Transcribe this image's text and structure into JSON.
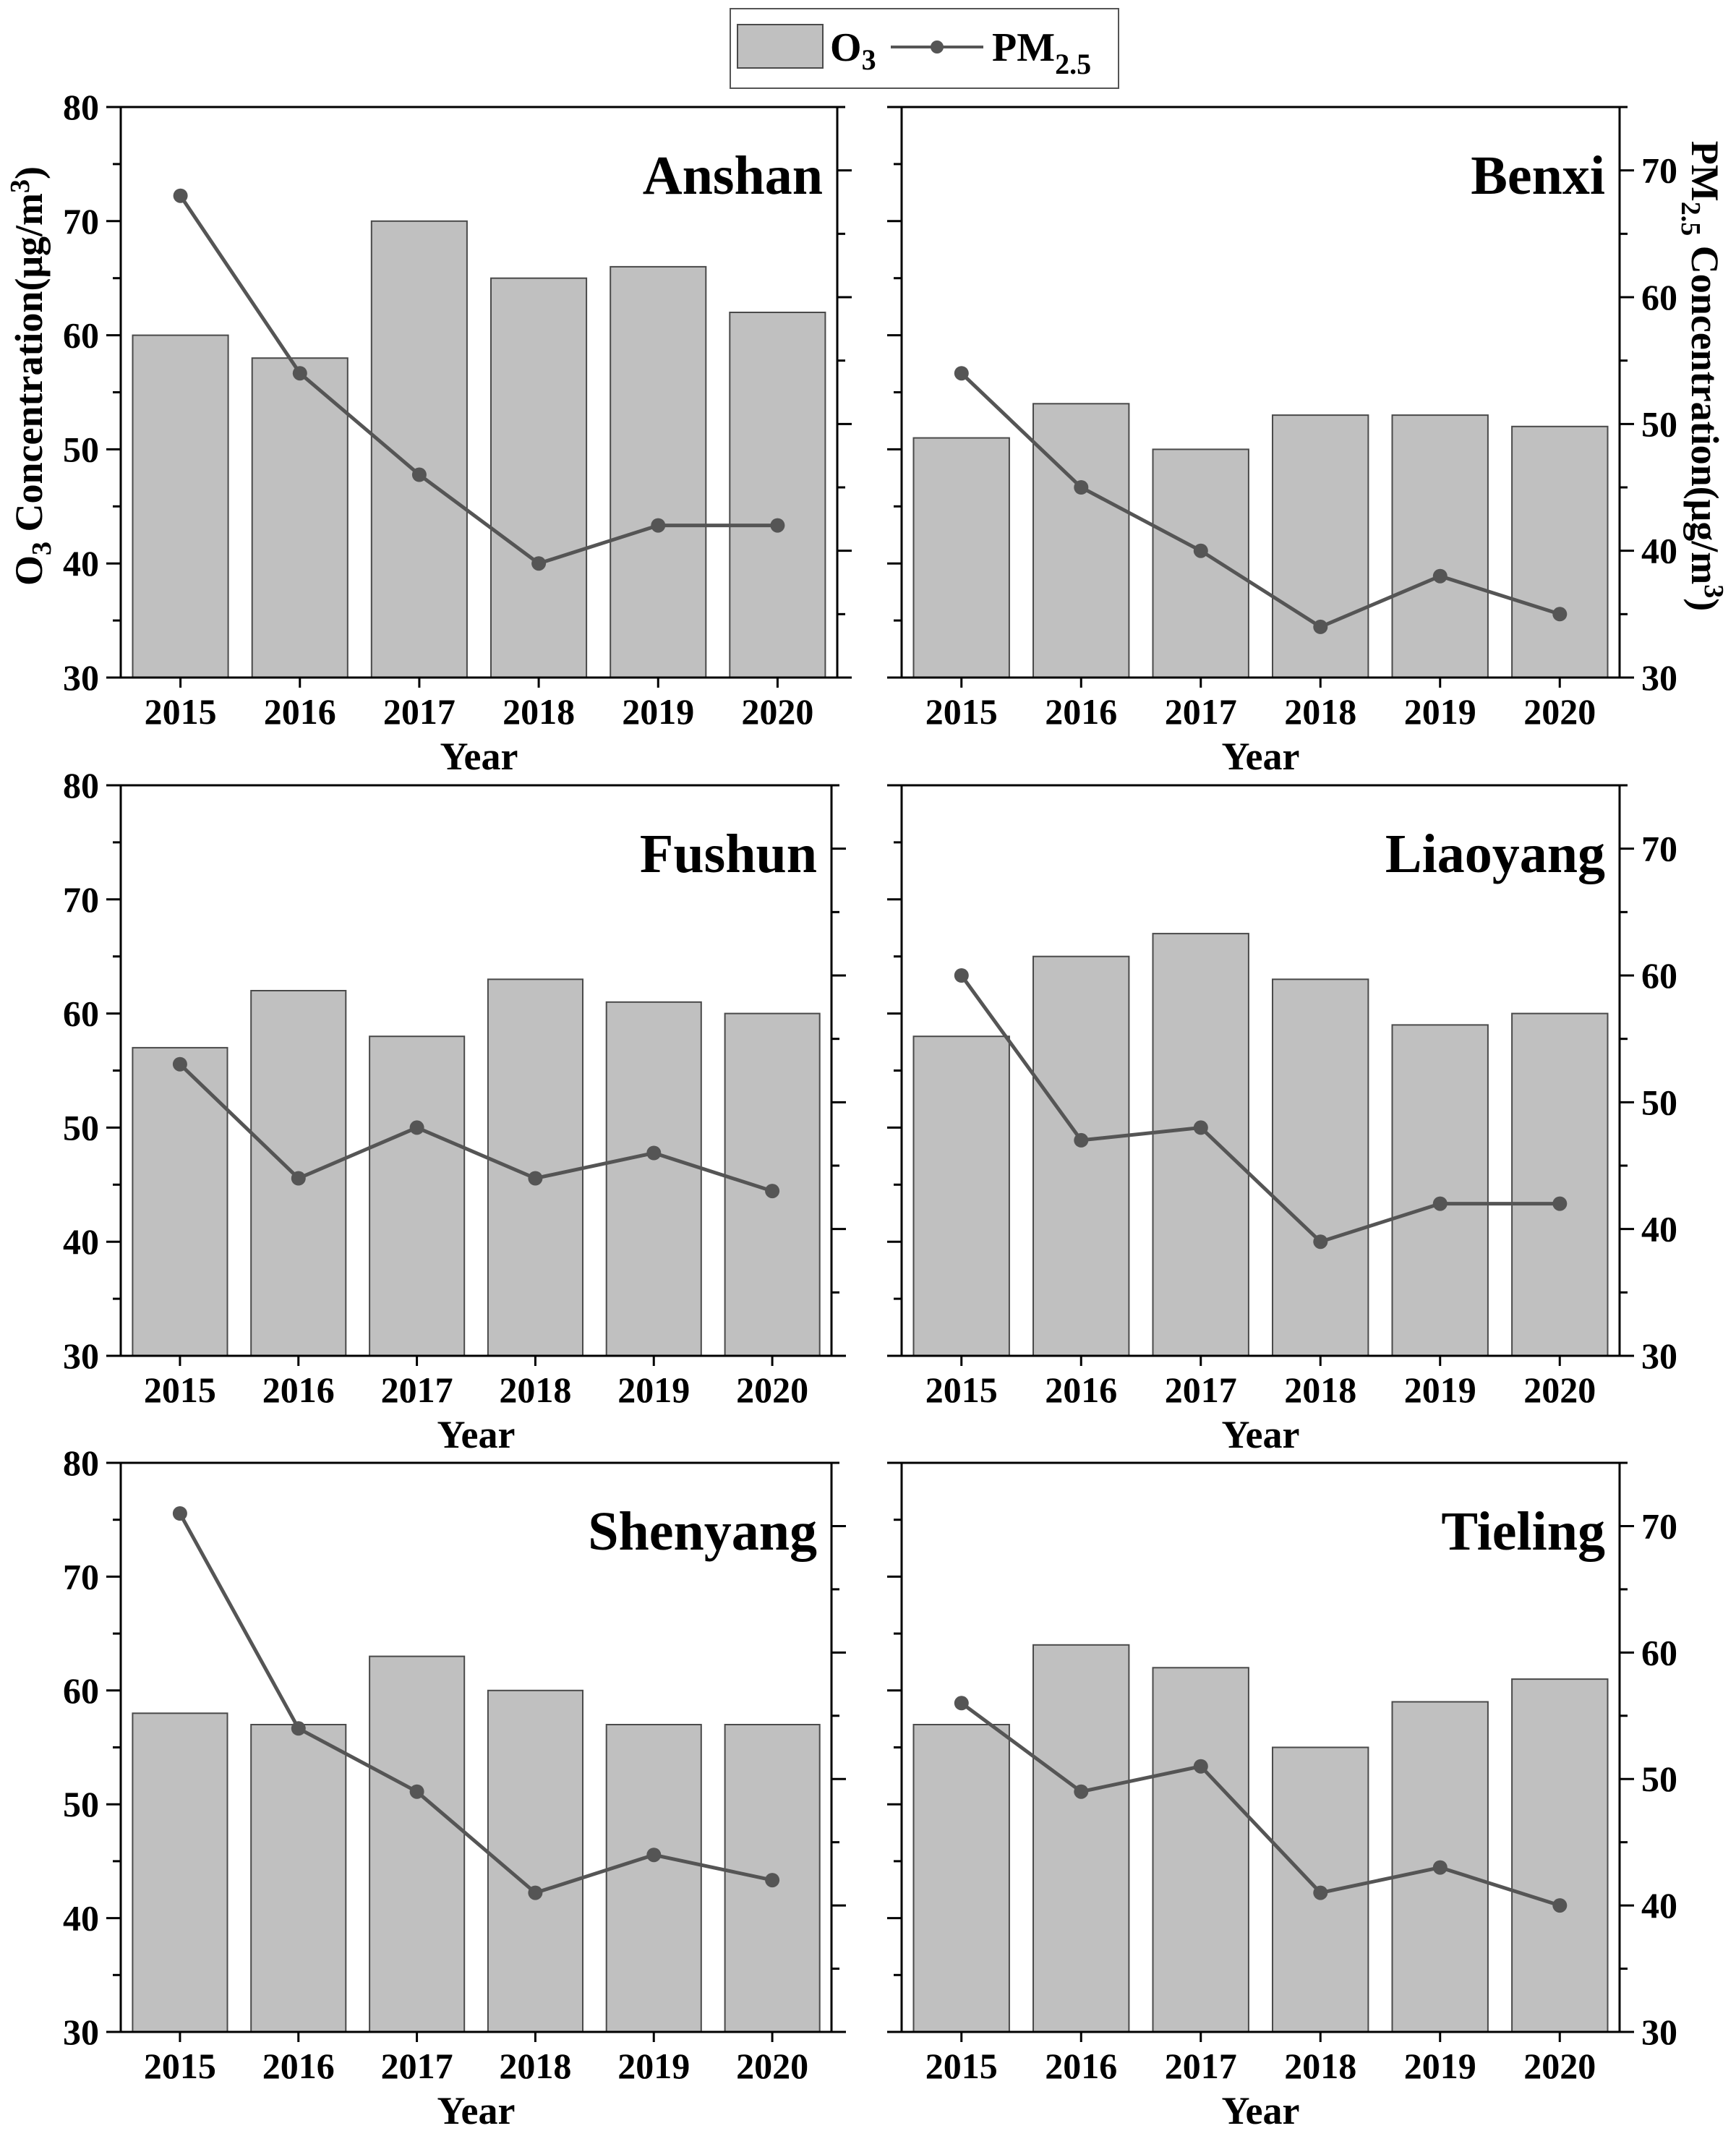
{
  "legend": {
    "bar_label": "O",
    "bar_sub": "3",
    "line_label": "PM",
    "line_sub": "2.5"
  },
  "axis_titles": {
    "left_main": "O",
    "left_sub": "3",
    "left_rest": " Concentration(μg/m",
    "left_sup": "3",
    "left_close": ")",
    "right_main": "PM",
    "right_sub": "2.5",
    "right_rest": " Concentration(μg/m",
    "right_sup": "3",
    "right_close": ")"
  },
  "colors": {
    "bar_fill": "#c0c0c0",
    "bar_stroke": "#4a4a4a",
    "line": "#555555"
  },
  "chart_data": [
    {
      "type": "bar",
      "city": "Anshan",
      "categories": [
        "2015",
        "2016",
        "2017",
        "2018",
        "2019",
        "2020"
      ],
      "xlabel": "Year",
      "ylim_left": [
        30,
        80
      ],
      "ylim_right": [
        30,
        75
      ],
      "left_ticks": [
        30,
        40,
        50,
        60,
        70,
        80
      ],
      "right_ticks": [],
      "series": [
        {
          "name": "O3",
          "type": "bar",
          "axis": "left",
          "values": [
            60,
            58,
            70,
            65,
            66,
            62
          ]
        },
        {
          "name": "PM2.5",
          "type": "line",
          "axis": "right",
          "values": [
            68,
            54,
            46,
            39,
            42,
            42
          ]
        }
      ]
    },
    {
      "type": "bar",
      "city": "Benxi",
      "categories": [
        "2015",
        "2016",
        "2017",
        "2018",
        "2019",
        "2020"
      ],
      "xlabel": "Year",
      "ylim_left": [
        30,
        80
      ],
      "ylim_right": [
        30,
        75
      ],
      "left_ticks": [],
      "right_ticks": [
        30,
        40,
        50,
        60,
        70
      ],
      "series": [
        {
          "name": "O3",
          "type": "bar",
          "axis": "left",
          "values": [
            51,
            54,
            50,
            53,
            53,
            52
          ]
        },
        {
          "name": "PM2.5",
          "type": "line",
          "axis": "right",
          "values": [
            54,
            45,
            40,
            34,
            38,
            35
          ]
        }
      ]
    },
    {
      "type": "bar",
      "city": "Fushun",
      "categories": [
        "2015",
        "2016",
        "2017",
        "2018",
        "2019",
        "2020"
      ],
      "xlabel": "Year",
      "ylim_left": [
        30,
        80
      ],
      "ylim_right": [
        30,
        75
      ],
      "left_ticks": [
        30,
        40,
        50,
        60,
        70,
        80
      ],
      "right_ticks": [],
      "series": [
        {
          "name": "O3",
          "type": "bar",
          "axis": "left",
          "values": [
            57,
            62,
            58,
            63,
            61,
            60
          ]
        },
        {
          "name": "PM2.5",
          "type": "line",
          "axis": "right",
          "values": [
            53,
            44,
            48,
            44,
            46,
            43
          ]
        }
      ]
    },
    {
      "type": "bar",
      "city": "Liaoyang",
      "categories": [
        "2015",
        "2016",
        "2017",
        "2018",
        "2019",
        "2020"
      ],
      "xlabel": "Year",
      "ylim_left": [
        30,
        80
      ],
      "ylim_right": [
        30,
        75
      ],
      "left_ticks": [],
      "right_ticks": [
        30,
        40,
        50,
        60,
        70
      ],
      "series": [
        {
          "name": "O3",
          "type": "bar",
          "axis": "left",
          "values": [
            58,
            65,
            67,
            63,
            59,
            60
          ]
        },
        {
          "name": "PM2.5",
          "type": "line",
          "axis": "right",
          "values": [
            60,
            47,
            48,
            39,
            42,
            42
          ]
        }
      ]
    },
    {
      "type": "bar",
      "city": "Shenyang",
      "categories": [
        "2015",
        "2016",
        "2017",
        "2018",
        "2019",
        "2020"
      ],
      "xlabel": "Year",
      "ylim_left": [
        30,
        80
      ],
      "ylim_right": [
        30,
        75
      ],
      "left_ticks": [
        30,
        40,
        50,
        60,
        70,
        80
      ],
      "right_ticks": [],
      "series": [
        {
          "name": "O3",
          "type": "bar",
          "axis": "left",
          "values": [
            58,
            57,
            63,
            60,
            57,
            57
          ]
        },
        {
          "name": "PM2.5",
          "type": "line",
          "axis": "right",
          "values": [
            71,
            54,
            49,
            41,
            44,
            42
          ]
        }
      ]
    },
    {
      "type": "bar",
      "city": "Tieling",
      "categories": [
        "2015",
        "2016",
        "2017",
        "2018",
        "2019",
        "2020"
      ],
      "xlabel": "Year",
      "ylim_left": [
        30,
        80
      ],
      "ylim_right": [
        30,
        75
      ],
      "left_ticks": [],
      "right_ticks": [
        30,
        40,
        50,
        60,
        70
      ],
      "series": [
        {
          "name": "O3",
          "type": "bar",
          "axis": "left",
          "values": [
            57,
            64,
            62,
            55,
            59,
            61
          ]
        },
        {
          "name": "PM2.5",
          "type": "line",
          "axis": "right",
          "values": [
            56,
            49,
            51,
            41,
            43,
            40
          ]
        }
      ]
    }
  ]
}
